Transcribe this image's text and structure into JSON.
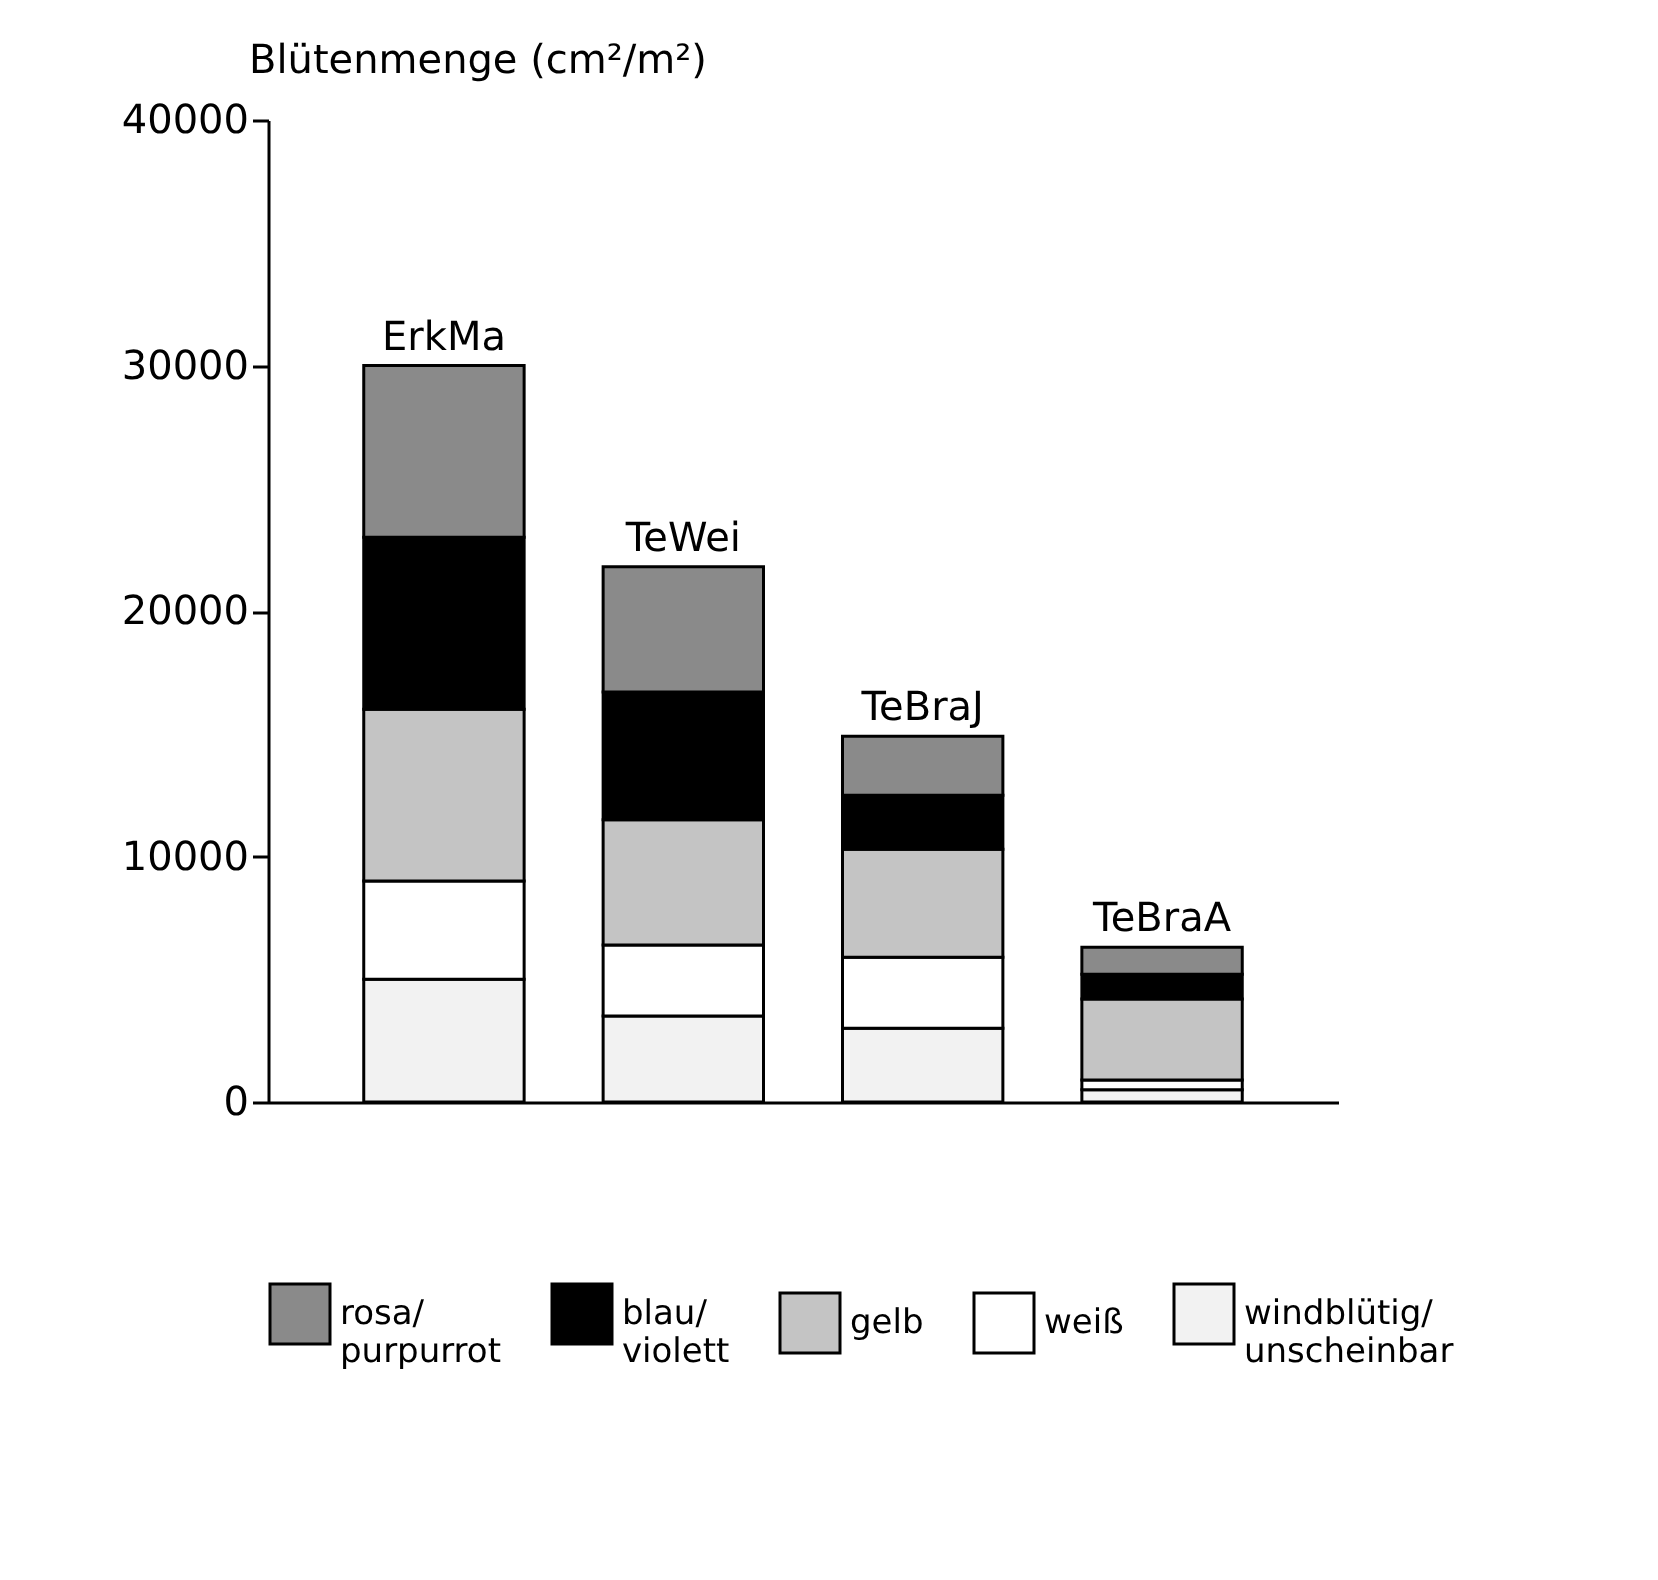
{
  "chart_data": {
    "type": "bar",
    "stacked": true,
    "ylabel": "Blütenmenge (cm²/m²)",
    "categories": [
      "ErkMa",
      "TeWei",
      "TeBraJ",
      "TeBraA"
    ],
    "series": [
      {
        "name": "windblütig/ unscheinbar",
        "color": "#f2f2f2",
        "values": [
          5000,
          3500,
          3000,
          500
        ]
      },
      {
        "name": "weiß",
        "color": "#ffffff",
        "values": [
          4000,
          2900,
          2900,
          400
        ]
      },
      {
        "name": "gelb",
        "color": "#c4c4c4",
        "values": [
          7000,
          5100,
          4400,
          3300
        ]
      },
      {
        "name": "blau/ violett",
        "color": "#000000",
        "values": [
          7000,
          5200,
          2200,
          1000
        ]
      },
      {
        "name": "rosa/ purpurrot",
        "color": "#8a8a8a",
        "values": [
          7000,
          5100,
          2400,
          1100
        ]
      }
    ],
    "ylim": [
      0,
      40000
    ],
    "yticks": [
      0,
      10000,
      20000,
      30000,
      40000
    ],
    "grid": false,
    "legend": "bottom"
  }
}
